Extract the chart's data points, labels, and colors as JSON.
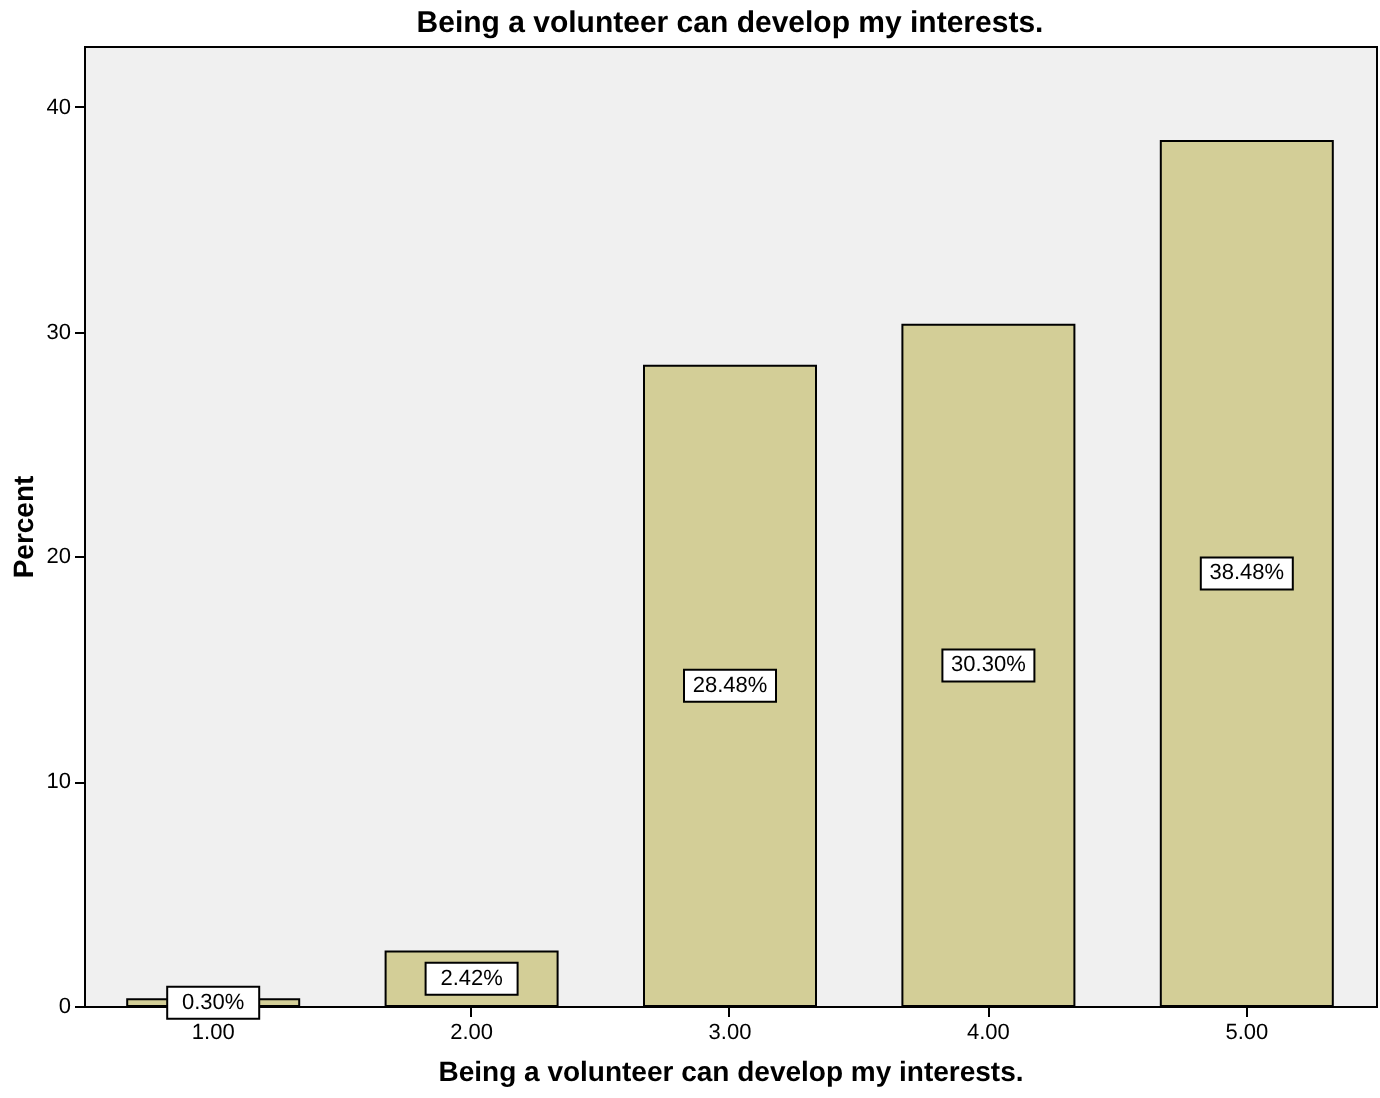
{
  "chart_data": {
    "type": "bar",
    "title": "Being a volunteer can develop my interests.",
    "xlabel": "Being a volunteer can develop my interests.",
    "ylabel": "Percent",
    "categories": [
      "1.00",
      "2.00",
      "3.00",
      "4.00",
      "5.00"
    ],
    "values": [
      0.3,
      2.42,
      28.48,
      30.3,
      38.48
    ],
    "value_labels": [
      "0.30%",
      "2.42%",
      "28.48%",
      "30.30%",
      "38.48%"
    ],
    "color": "#d3ce97",
    "ylim": [
      0,
      42.7
    ],
    "yticks": [
      0,
      10,
      20,
      30,
      40
    ],
    "grid": false
  }
}
